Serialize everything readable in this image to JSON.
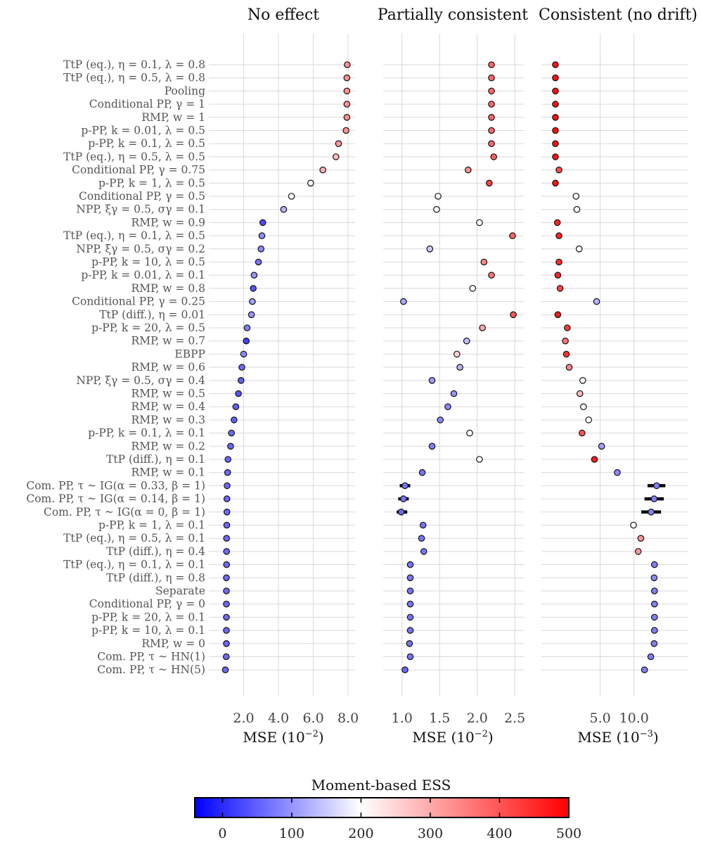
{
  "chart_data": {
    "type": "scatter",
    "rows": [
      "TtP (eq.), η = 0.1, λ = 0.8",
      "TtP (eq.), η = 0.5, λ = 0.8",
      "Pooling",
      "Conditional PP, γ = 1",
      "RMP, w = 1",
      "p-PP, k = 0.01, λ = 0.5",
      "p-PP, k = 0.1, λ = 0.5",
      "TtP (eq.), η = 0.5, λ = 0.5",
      "Conditional PP, γ = 0.75",
      "p-PP, k = 1, λ = 0.5",
      "Conditional PP, γ = 0.5",
      "NPP, ξγ = 0.5, σγ = 0.1",
      "RMP, w = 0.9",
      "TtP (eq.), η = 0.1, λ = 0.5",
      "NPP, ξγ = 0.5, σγ = 0.2",
      "p-PP, k = 10, λ = 0.5",
      "p-PP, k = 0.01, λ = 0.1",
      "RMP, w = 0.8",
      "Conditional PP, γ = 0.25",
      "TtP (diff.), η = 0.01",
      "p-PP, k = 20, λ = 0.5",
      "RMP, w = 0.7",
      "EBPP",
      "RMP, w = 0.6",
      "NPP, ξγ = 0.5, σγ = 0.4",
      "RMP, w = 0.5",
      "RMP, w = 0.4",
      "RMP, w = 0.3",
      "p-PP, k = 0.1, λ = 0.1",
      "RMP, w = 0.2",
      "TtP (diff.), η = 0.1",
      "RMP, w = 0.1",
      "Com. PP, τ ~ IG(α = 0.33, β = 1)",
      "Com. PP, τ ~ IG(α = 0.14, β = 1)",
      "Com. PP, τ ~ IG(α = 0, β = 1)",
      "p-PP, k = 1, λ = 0.1",
      "TtP (eq.), η = 0.5, λ = 0.1",
      "TtP (diff.), η = 0.4",
      "TtP (eq.), η = 0.1, λ = 0.1",
      "TtP (diff.), η = 0.8",
      "Separate",
      "Conditional PP, γ = 0",
      "p-PP, k = 20, λ = 0.1",
      "p-PP, k = 10, λ = 0.1",
      "RMP, w = 0",
      "Com. PP, τ ~ HN(1)",
      "Com. PP, τ ~ HN(5)"
    ],
    "panels": [
      {
        "title": "No effect",
        "xlabel_base": "MSE (10",
        "xlabel_exp": "−2",
        "xlabel_end": ")",
        "xscale": "linear",
        "xlim": [
          0,
          8.4
        ],
        "xticks": [
          2,
          4,
          6,
          8
        ],
        "xtick_labels": [
          "2.0",
          "4.0",
          "6.0",
          "8.0"
        ],
        "mse": [
          7.95,
          7.93,
          7.93,
          7.93,
          7.93,
          7.88,
          7.45,
          7.3,
          6.55,
          5.85,
          4.75,
          4.3,
          3.1,
          3.05,
          3.0,
          2.85,
          2.6,
          2.55,
          2.5,
          2.45,
          2.2,
          2.15,
          2.0,
          1.9,
          1.85,
          1.7,
          1.55,
          1.45,
          1.3,
          1.25,
          1.1,
          1.08,
          1.05,
          1.04,
          1.04,
          1.03,
          1.02,
          1.02,
          1.02,
          1.01,
          1.01,
          1.01,
          1.01,
          1.01,
          1.01,
          1.0,
          0.95
        ],
        "ess": [
          330,
          330,
          330,
          330,
          330,
          330,
          320,
          280,
          290,
          210,
          200,
          130,
          30,
          90,
          90,
          70,
          100,
          40,
          110,
          100,
          80,
          20,
          90,
          60,
          50,
          40,
          50,
          50,
          60,
          60,
          60,
          60,
          60,
          60,
          60,
          60,
          60,
          60,
          60,
          60,
          60,
          60,
          60,
          60,
          60,
          60,
          60
        ],
        "err": []
      },
      {
        "title": "Partially consistent",
        "xlabel_base": "MSE (10",
        "xlabel_exp": "−2",
        "xlabel_end": ")",
        "xscale": "linear",
        "xlim": [
          0.75,
          2.62
        ],
        "xticks": [
          1.0,
          1.5,
          2.0,
          2.5
        ],
        "xtick_labels": [
          "1.0",
          "1.5",
          "2.0",
          "2.5"
        ],
        "mse": [
          2.19,
          2.19,
          2.19,
          2.19,
          2.19,
          2.19,
          2.19,
          2.22,
          1.88,
          2.16,
          1.48,
          1.46,
          2.03,
          2.47,
          1.37,
          2.09,
          2.19,
          1.94,
          1.02,
          2.48,
          2.07,
          1.86,
          1.73,
          1.77,
          1.4,
          1.69,
          1.61,
          1.51,
          1.9,
          1.4,
          2.03,
          1.27,
          1.04,
          1.02,
          0.99,
          1.28,
          1.26,
          1.29,
          1.11,
          1.11,
          1.11,
          1.11,
          1.11,
          1.11,
          1.1,
          1.11,
          1.04
        ],
        "ess": [
          380,
          380,
          380,
          380,
          380,
          380,
          380,
          390,
          330,
          420,
          200,
          200,
          200,
          380,
          150,
          340,
          360,
          200,
          120,
          400,
          300,
          140,
          250,
          130,
          110,
          100,
          90,
          90,
          200,
          80,
          200,
          70,
          70,
          70,
          60,
          70,
          70,
          70,
          70,
          70,
          70,
          70,
          70,
          70,
          70,
          70,
          60
        ],
        "err": [
          [
            32,
            0.97,
            1.11
          ],
          [
            33,
            0.95,
            1.09
          ],
          [
            34,
            0.93,
            1.07
          ]
        ]
      },
      {
        "title": "Consistent (no drift)",
        "xlabel_base": "MSE (10",
        "xlabel_exp": "−3",
        "xlabel_end": ")",
        "xscale": "log",
        "xlim": [
          1.5,
          30
        ],
        "xticks": [
          5,
          10
        ],
        "xtick_labels": [
          "5.0",
          "10.0"
        ],
        "mse": [
          2.0,
          2.0,
          2.0,
          2.0,
          2.0,
          2.0,
          2.0,
          2.0,
          2.15,
          2.0,
          3.05,
          3.1,
          2.08,
          2.15,
          3.25,
          2.15,
          2.1,
          2.2,
          4.65,
          2.1,
          2.55,
          2.45,
          2.5,
          2.65,
          3.5,
          3.3,
          3.55,
          3.95,
          3.45,
          5.15,
          4.45,
          7.1,
          15.9,
          15.1,
          14.2,
          9.9,
          11.5,
          10.9,
          15.2,
          15.1,
          15.2,
          15.2,
          15.2,
          15.2,
          15.1,
          14.1,
          12.4
        ],
        "ess": [
          480,
          480,
          480,
          480,
          480,
          480,
          480,
          480,
          410,
          480,
          200,
          200,
          460,
          460,
          200,
          450,
          460,
          420,
          130,
          470,
          430,
          360,
          440,
          340,
          200,
          280,
          200,
          200,
          400,
          110,
          470,
          90,
          80,
          80,
          80,
          200,
          330,
          320,
          80,
          90,
          80,
          80,
          80,
          80,
          80,
          80,
          80
        ],
        "err": [
          [
            32,
            13.2,
            19.0
          ],
          [
            33,
            12.4,
            18.4
          ],
          [
            34,
            11.6,
            17.4
          ]
        ]
      }
    ],
    "colorbar": {
      "title": "Moment-based ESS",
      "range": [
        -40,
        500
      ],
      "ticks": [
        0,
        100,
        200,
        300,
        400,
        500
      ],
      "colors": [
        "#0000ff",
        "#ffffff",
        "#ff0000"
      ]
    }
  }
}
